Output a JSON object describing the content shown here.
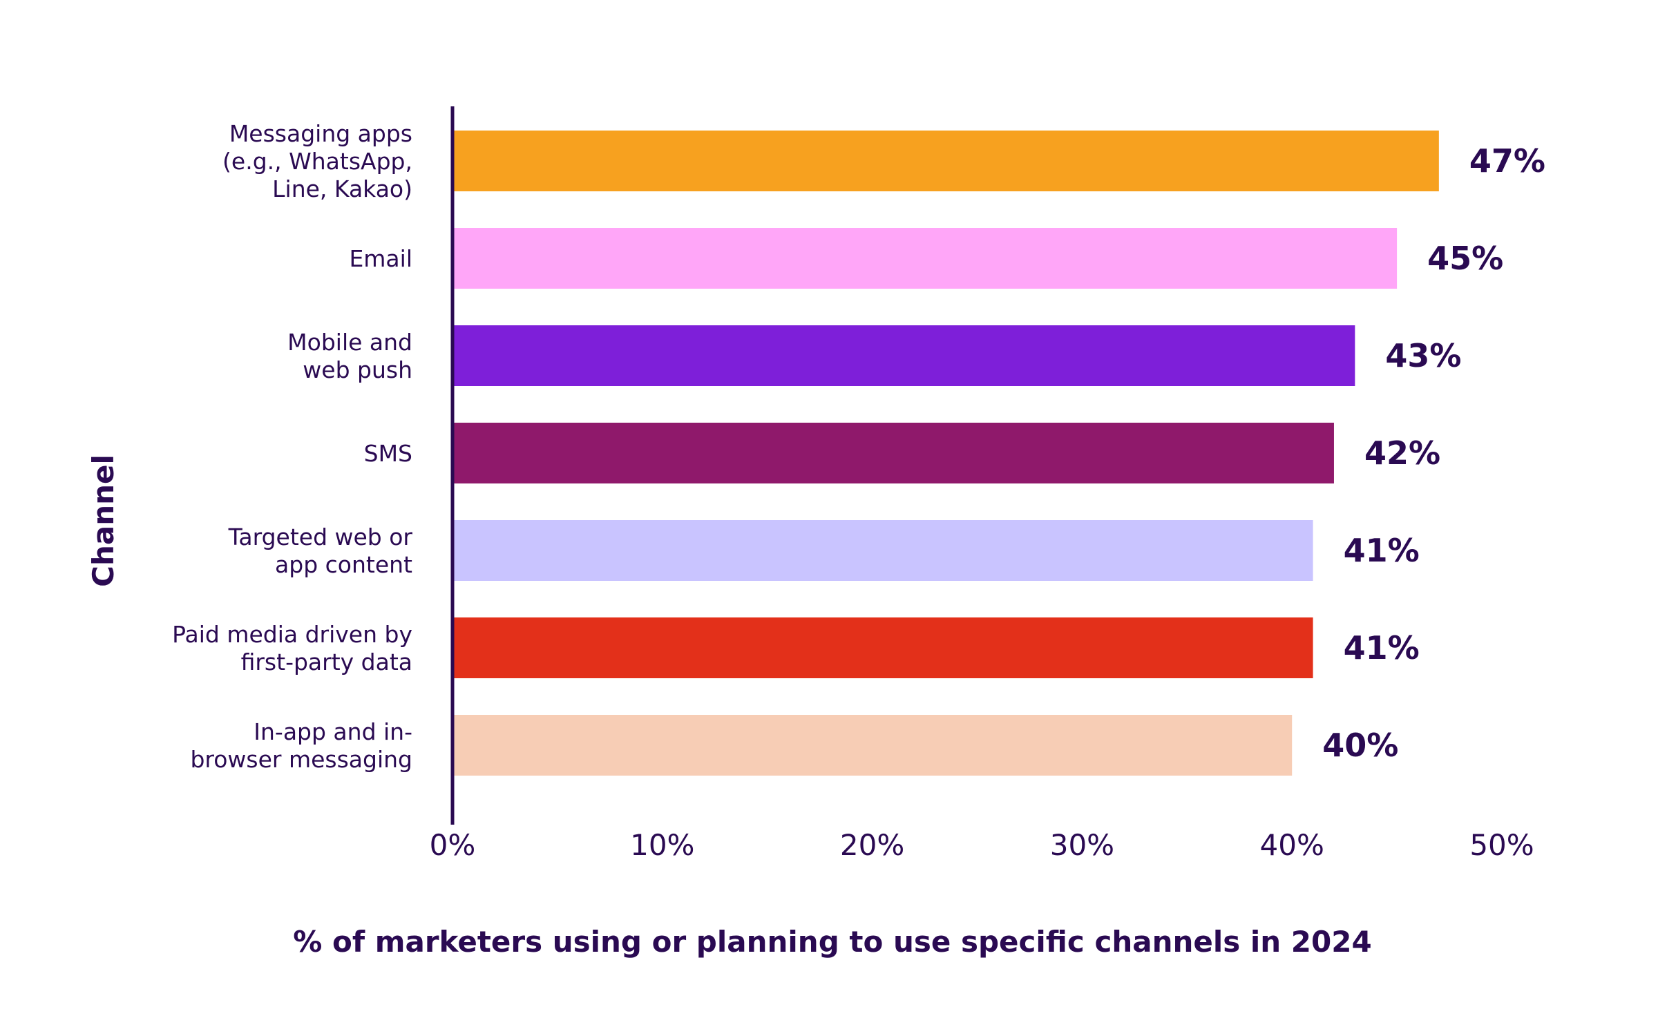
{
  "chart_data": {
    "type": "bar",
    "orientation": "horizontal",
    "categories": [
      [
        "Messaging apps",
        "(e.g., WhatsApp,",
        "Line, Kakao)"
      ],
      [
        "Email"
      ],
      [
        "Mobile and",
        "web push"
      ],
      [
        "SMS"
      ],
      [
        "Targeted web or",
        "app content"
      ],
      [
        "Paid media driven by",
        "first-party data"
      ],
      [
        "In-app and in-",
        "browser messaging"
      ]
    ],
    "values": [
      47,
      45,
      43,
      42,
      41,
      41,
      40
    ],
    "value_labels": [
      "47%",
      "45%",
      "43%",
      "42%",
      "41%",
      "41%",
      "40%"
    ],
    "colors": [
      "#F7A11F",
      "#FFA6F8",
      "#7E1FD9",
      "#8F196B",
      "#C9C4FF",
      "#E3301A",
      "#F7CDB5"
    ],
    "xlim": [
      0,
      50
    ],
    "xticks": [
      0,
      10,
      20,
      30,
      40,
      50
    ],
    "xtick_labels": [
      "0%",
      "10%",
      "20%",
      "30%",
      "40%",
      "50%"
    ],
    "xlabel": "% of marketers using or planning to use specific channels in 2024",
    "ylabel": "Channel",
    "grid": false,
    "text_color": "#2A0A52"
  }
}
